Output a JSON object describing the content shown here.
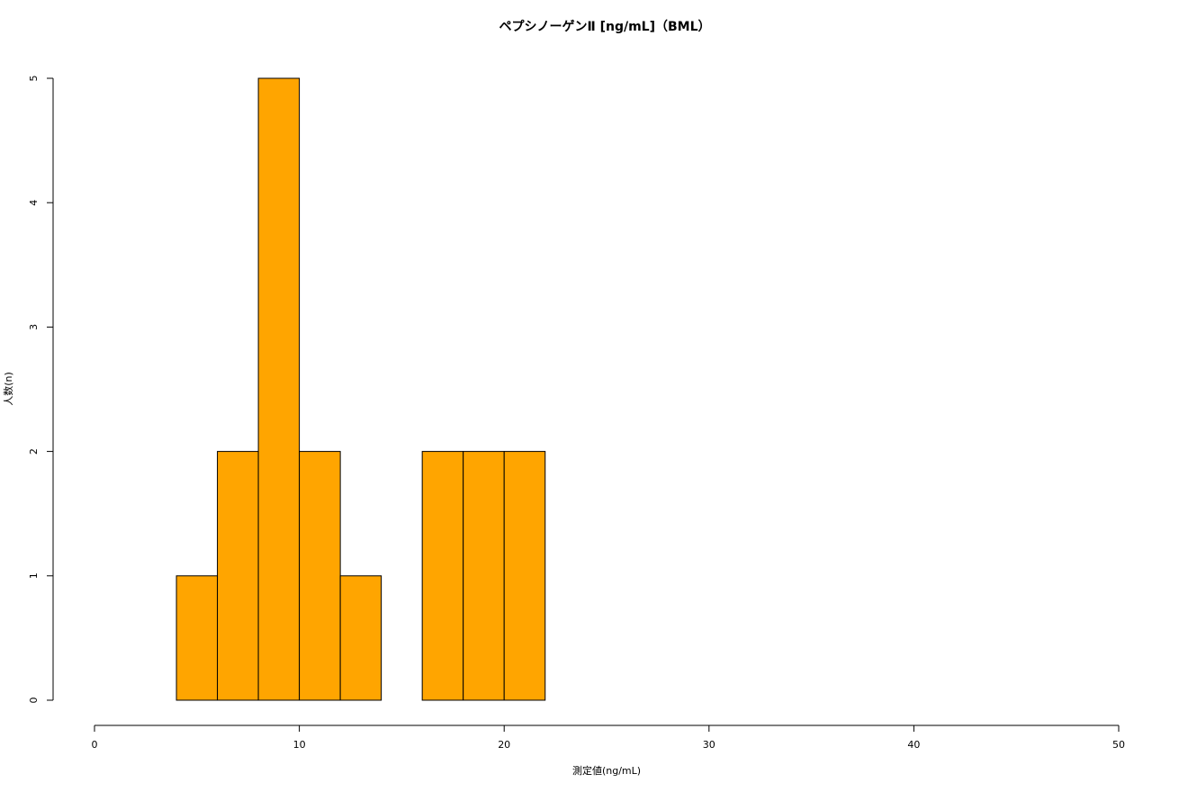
{
  "chart_data": {
    "type": "histogram",
    "title": "ペプシノーゲンⅡ [ng/mL]（BML）",
    "x_label": "測定値(ng/mL)",
    "y_label": "人数(n)",
    "bins": [
      4,
      6,
      8,
      10,
      12,
      14,
      16,
      18,
      20,
      22
    ],
    "values": [
      1,
      2,
      5,
      2,
      1,
      0,
      2,
      2,
      2
    ],
    "color": "#ffa500",
    "xlim": [
      0,
      50
    ],
    "xticks": [
      0,
      10,
      20,
      30,
      40,
      50
    ],
    "ylim": [
      0,
      5
    ],
    "yticks": [
      0,
      1,
      2,
      3,
      4,
      5
    ]
  }
}
